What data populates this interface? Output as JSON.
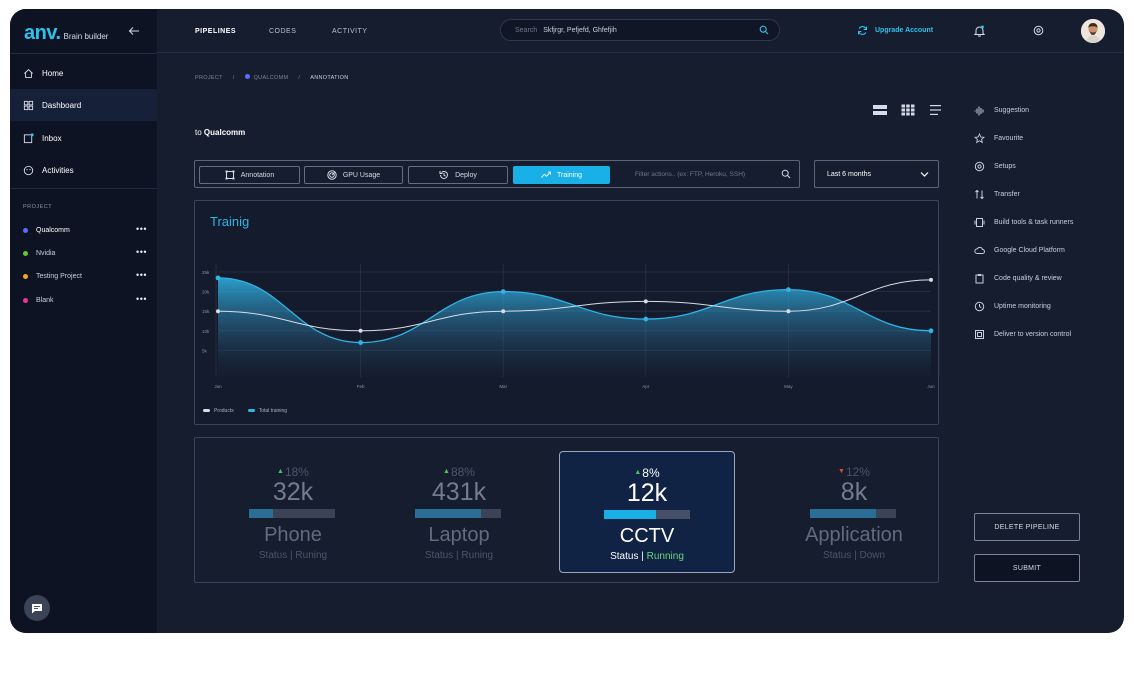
{
  "brand": {
    "logo": "anv.",
    "tagline": "Brain builder"
  },
  "sidebar": {
    "nav": [
      {
        "label": "Home",
        "icon": "home-icon"
      },
      {
        "label": "Dashboard",
        "icon": "dashboard-icon",
        "active": true
      },
      {
        "label": "Inbox",
        "icon": "inbox-icon"
      },
      {
        "label": "Activities",
        "icon": "activities-icon"
      }
    ],
    "project_heading": "PROJECT",
    "projects": [
      {
        "label": "Qualcomm",
        "color": "#5a6cff",
        "active": true
      },
      {
        "label": "Nvidia",
        "color": "#62c928"
      },
      {
        "label": "Testing Project",
        "color": "#f5a623"
      },
      {
        "label": "Blank",
        "color": "#f0329a"
      }
    ],
    "more_label": "•••"
  },
  "header": {
    "tabs": [
      {
        "label": "PIPELINES",
        "active": true
      },
      {
        "label": "CODES"
      },
      {
        "label": "ACTIVITY"
      }
    ],
    "search": {
      "label": "Search",
      "value": "Skfjrgr, Pefjefd, Ghfefjih"
    },
    "upgrade_label": "Upgrade Account"
  },
  "breadcrumb": [
    "PROJECT",
    "QUALCOMM",
    "ANNOTATION"
  ],
  "breadcrumb_sep": "/",
  "subtitle": {
    "prefix": "to",
    "name": "Qualcomm"
  },
  "actions": {
    "buttons": [
      {
        "label": "Annotation",
        "icon": "annotation-icon"
      },
      {
        "label": "GPU Usage",
        "icon": "gpu-icon"
      },
      {
        "label": "Deploy",
        "icon": "deploy-icon"
      },
      {
        "label": "Training",
        "icon": "training-icon",
        "active": true
      }
    ],
    "filter_placeholder": "Filter actions.. (ex: FTP, Heroku, SSH)",
    "period": "Last 6 months"
  },
  "chart_data": {
    "type": "area",
    "title": "Trainig",
    "categories": [
      "Jan",
      "Feb",
      "Mar",
      "Apr",
      "May",
      "Jun"
    ],
    "y_ticks": [
      "25k",
      "20k",
      "15k",
      "10k",
      "5k"
    ],
    "ylim": [
      0,
      25000
    ],
    "grid": true,
    "legend_position": "bottom-left",
    "series": [
      {
        "name": "Products",
        "color": "#d8dce4",
        "values": [
          15000,
          10000,
          15000,
          17500,
          15000,
          23000
        ]
      },
      {
        "name": "Total training",
        "color": "#2fb4e6",
        "values": [
          23500,
          7000,
          20000,
          13000,
          20500,
          10000
        ]
      }
    ]
  },
  "cards": [
    {
      "delta": "18%",
      "trend": "up",
      "value": "32k",
      "progress": 0.28,
      "name": "Phone",
      "status_label": "Status",
      "status_sep": "|",
      "status_value": "Runing"
    },
    {
      "delta": "88%",
      "trend": "up",
      "value": "431k",
      "progress": 0.77,
      "name": "Laptop",
      "status_label": "Status",
      "status_sep": "|",
      "status_value": "Runing"
    },
    {
      "delta": "8%",
      "trend": "up",
      "value": "12k",
      "progress": 0.6,
      "name": "CCTV",
      "status_label": "Status",
      "status_sep": "|",
      "status_value": "Running",
      "active": true
    },
    {
      "delta": "12%",
      "trend": "down",
      "value": "8k",
      "progress": 0.77,
      "name": "Application",
      "status_label": "Status",
      "status_sep": "|",
      "status_value": "Down"
    }
  ],
  "trend_arrows": {
    "up": "▲",
    "down": "▼"
  },
  "trend_colors": {
    "up": "#4cbf62",
    "down": "#e0443a"
  },
  "right_menu": [
    {
      "label": "Suggestion",
      "icon": "suggestion-icon"
    },
    {
      "label": "Favourite",
      "icon": "star-icon"
    },
    {
      "label": "Setups",
      "icon": "setups-icon"
    },
    {
      "label": "Transfer",
      "icon": "transfer-icon"
    },
    {
      "label": "Build tools & task runners",
      "icon": "build-icon"
    },
    {
      "label": "Google Cloud Platform",
      "icon": "cloud-icon"
    },
    {
      "label": "Code quality & review",
      "icon": "clipboard-icon"
    },
    {
      "label": "Uptime monitoring",
      "icon": "uptime-icon"
    },
    {
      "label": "Deliver to version control",
      "icon": "version-icon"
    }
  ],
  "buttons": {
    "delete": "DELETE PIPELINE",
    "submit": "SUBMIT"
  }
}
